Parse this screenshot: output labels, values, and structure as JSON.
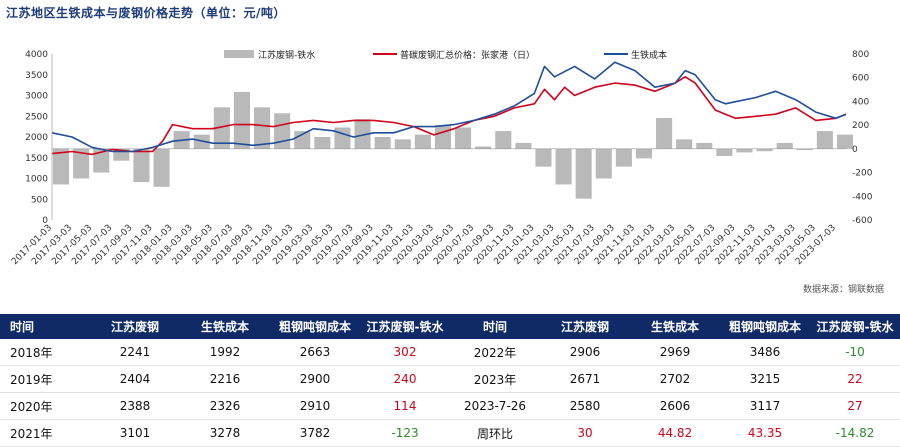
{
  "title": "江苏地区生铁成本与废钢价格走势（单位：元/吨）",
  "source": "数据来源：钢联数据",
  "colors": {
    "bar": "#b9b9b9",
    "red_line": "#d0021b",
    "blue_line": "#1f4e9a",
    "header_bg": "#0f2a66",
    "positive": "#d0021b",
    "negative": "#2e8b2e"
  },
  "chart_data": {
    "type": "bar+line",
    "left_axis": {
      "min": 0,
      "max": 4000,
      "ticks": [
        "0",
        "500",
        "1000",
        "1500",
        "2000",
        "2500",
        "3000",
        "3500",
        "4000"
      ]
    },
    "right_axis": {
      "min": -600,
      "max": 800,
      "ticks": [
        "-600",
        "-400",
        "-200",
        "0",
        "200",
        "400",
        "600",
        "800"
      ]
    },
    "x_ticks": [
      "2017-01-03",
      "2017-03-03",
      "2017-05-03",
      "2017-07-03",
      "2017-09-03",
      "2017-11-03",
      "2018-01-03",
      "2018-03-03",
      "2018-05-03",
      "2018-07-03",
      "2018-09-03",
      "2018-11-03",
      "2019-01-03",
      "2019-03-03",
      "2019-05-03",
      "2019-07-03",
      "2019-09-03",
      "2019-11-03",
      "2020-01-03",
      "2020-03-03",
      "2020-05-03",
      "2020-07-03",
      "2020-09-03",
      "2020-11-03",
      "2021-01-03",
      "2021-03-03",
      "2021-05-03",
      "2021-07-03",
      "2021-09-03",
      "2021-11-03",
      "2022-01-03",
      "2022-03-03",
      "2022-05-03",
      "2022-07-03",
      "2022-09-03",
      "2022-11-03",
      "2023-01-03",
      "2023-03-03",
      "2023-05-03",
      "2023-07-03"
    ],
    "series": [
      {
        "name": "江苏废钢-铁水",
        "kind": "bar",
        "axis": "right",
        "x": [
          0,
          2,
          4,
          6,
          8,
          10,
          12,
          14,
          16,
          18,
          20,
          22,
          24,
          26,
          28,
          30,
          32,
          34,
          36,
          38,
          40,
          42,
          44,
          46,
          48,
          50,
          52,
          54,
          56,
          58,
          60,
          62,
          64,
          66,
          68,
          70,
          72,
          74,
          76,
          78
        ],
        "values": [
          -300,
          -250,
          -200,
          -100,
          -280,
          -320,
          150,
          120,
          350,
          480,
          350,
          300,
          150,
          100,
          180,
          250,
          100,
          80,
          120,
          200,
          180,
          20,
          150,
          50,
          -150,
          -300,
          -420,
          -250,
          -150,
          -80,
          260,
          80,
          50,
          -60,
          -30,
          -20,
          50,
          -10,
          150,
          120
        ]
      },
      {
        "name": "普碳废钢汇总价格：张家港（日）",
        "kind": "line",
        "axis": "left",
        "x": [
          0,
          2,
          4,
          6,
          8,
          10,
          11,
          12,
          14,
          16,
          18,
          20,
          22,
          24,
          26,
          28,
          30,
          32,
          34,
          36,
          38,
          40,
          42,
          44,
          46,
          48,
          49,
          50,
          51,
          52,
          54,
          56,
          58,
          60,
          62,
          63,
          64,
          66,
          67,
          68,
          70,
          72,
          74,
          76,
          78,
          79
        ],
        "values": [
          1600,
          1650,
          1580,
          1700,
          1650,
          1650,
          1900,
          2300,
          2200,
          2200,
          2300,
          2300,
          2250,
          2350,
          2400,
          2350,
          2400,
          2400,
          2350,
          2250,
          2050,
          2200,
          2400,
          2500,
          2700,
          2800,
          3150,
          2900,
          3200,
          3000,
          3200,
          3300,
          3250,
          3100,
          3300,
          3450,
          3300,
          2650,
          2550,
          2450,
          2500,
          2550,
          2700,
          2400,
          2450,
          2550
        ]
      },
      {
        "name": "生铁成本",
        "kind": "line",
        "axis": "left",
        "x": [
          0,
          2,
          4,
          6,
          8,
          10,
          12,
          14,
          16,
          18,
          20,
          22,
          24,
          26,
          28,
          30,
          32,
          34,
          36,
          38,
          40,
          42,
          44,
          46,
          48,
          49,
          50,
          52,
          54,
          56,
          58,
          60,
          62,
          63,
          64,
          66,
          67,
          68,
          70,
          72,
          74,
          76,
          78,
          79
        ],
        "values": [
          2100,
          2000,
          1750,
          1650,
          1650,
          1750,
          1900,
          1950,
          1850,
          1850,
          1800,
          1850,
          1950,
          2200,
          2150,
          2000,
          2100,
          2100,
          2250,
          2250,
          2300,
          2400,
          2550,
          2750,
          3050,
          3700,
          3450,
          3700,
          3400,
          3800,
          3600,
          3200,
          3300,
          3600,
          3500,
          2900,
          2800,
          2850,
          2950,
          3100,
          2900,
          2600,
          2450,
          2550
        ]
      }
    ]
  },
  "table": {
    "headers": [
      "时间",
      "江苏废钢",
      "生铁成本",
      "粗钢吨钢成本",
      "江苏废钢-铁水",
      "时间",
      "江苏废钢",
      "生铁成本",
      "粗钢吨钢成本",
      "江苏废钢-铁水"
    ],
    "rows": [
      [
        "2018年",
        "2241",
        "1992",
        "2663",
        "302",
        "2022年",
        "2906",
        "2969",
        "3486",
        "-10"
      ],
      [
        "2019年",
        "2404",
        "2216",
        "2900",
        "240",
        "2023年",
        "2671",
        "2702",
        "3215",
        "22"
      ],
      [
        "2020年",
        "2388",
        "2326",
        "2910",
        "114",
        "2023-7-26",
        "2580",
        "2606",
        "3117",
        "27"
      ],
      [
        "2021年",
        "3101",
        "3278",
        "3782",
        "-123",
        "周环比",
        "30",
        "44.82",
        "43.35",
        "-14.82"
      ]
    ]
  }
}
